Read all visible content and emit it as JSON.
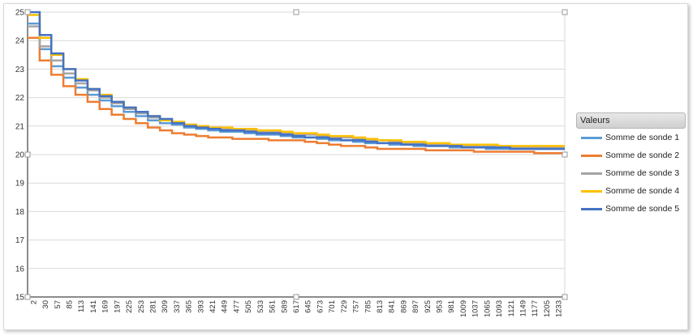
{
  "chart_data": {
    "type": "line",
    "ylim": [
      15,
      25
    ],
    "y_ticks": [
      "15",
      "16",
      "17",
      "18",
      "19",
      "20",
      "21",
      "22",
      "23",
      "24",
      "25"
    ],
    "x_tick_labels": [
      "2",
      "30",
      "57",
      "85",
      "113",
      "141",
      "169",
      "197",
      "225",
      "253",
      "281",
      "309",
      "337",
      "365",
      "393",
      "421",
      "449",
      "477",
      "505",
      "533",
      "561",
      "589",
      "617",
      "645",
      "673",
      "701",
      "729",
      "757",
      "785",
      "813",
      "841",
      "869",
      "897",
      "925",
      "953",
      "981",
      "1009",
      "1037",
      "1065",
      "1093",
      "1121",
      "1149",
      "1177",
      "1205",
      "1233"
    ],
    "x_range": [
      2,
      1248
    ],
    "grid": "horizontal",
    "legend_position": "right",
    "legend_title": "Valeurs",
    "x": [
      2,
      30,
      57,
      85,
      113,
      141,
      169,
      197,
      225,
      253,
      281,
      309,
      337,
      365,
      393,
      421,
      449,
      477,
      505,
      533,
      561,
      589,
      617,
      645,
      673,
      701,
      729,
      757,
      785,
      813,
      841,
      869,
      897,
      925,
      953,
      981,
      1009,
      1037,
      1065,
      1093,
      1121,
      1149,
      1177,
      1205,
      1233,
      1248
    ],
    "series": [
      {
        "name": "Somme de sonde 1",
        "color": "#5b9bd5",
        "values": [
          24.6,
          23.7,
          23.1,
          22.7,
          22.35,
          22.1,
          21.9,
          21.7,
          21.5,
          21.35,
          21.2,
          21.1,
          21.05,
          20.95,
          20.9,
          20.85,
          20.8,
          20.8,
          20.75,
          20.7,
          20.7,
          20.65,
          20.6,
          20.6,
          20.55,
          20.5,
          20.5,
          20.45,
          20.4,
          20.4,
          20.35,
          20.35,
          20.3,
          20.3,
          20.3,
          20.25,
          20.25,
          20.25,
          20.2,
          20.2,
          20.2,
          20.2,
          20.2,
          20.2,
          20.2,
          20.2
        ]
      },
      {
        "name": "Somme de sonde 2",
        "color": "#ed7d31",
        "values": [
          24.1,
          23.3,
          22.8,
          22.4,
          22.1,
          21.85,
          21.6,
          21.4,
          21.25,
          21.1,
          20.95,
          20.85,
          20.75,
          20.7,
          20.65,
          20.6,
          20.6,
          20.55,
          20.55,
          20.55,
          20.5,
          20.5,
          20.5,
          20.45,
          20.4,
          20.35,
          20.3,
          20.3,
          20.25,
          20.2,
          20.2,
          20.2,
          20.2,
          20.15,
          20.15,
          20.15,
          20.15,
          20.1,
          20.1,
          20.1,
          20.1,
          20.1,
          20.05,
          20.05,
          20.05,
          20.05
        ]
      },
      {
        "name": "Somme de sonde 3",
        "color": "#a5a5a5",
        "values": [
          24.5,
          23.8,
          23.3,
          22.85,
          22.5,
          22.25,
          22.0,
          21.8,
          21.6,
          21.45,
          21.3,
          21.2,
          21.1,
          21.05,
          21.0,
          20.95,
          20.9,
          20.85,
          20.85,
          20.8,
          20.8,
          20.75,
          20.7,
          20.7,
          20.65,
          20.6,
          20.6,
          20.55,
          20.5,
          20.5,
          20.45,
          20.4,
          20.4,
          20.35,
          20.35,
          20.35,
          20.3,
          20.3,
          20.3,
          20.3,
          20.25,
          20.25,
          20.25,
          20.25,
          20.25,
          20.25
        ]
      },
      {
        "name": "Somme de sonde 4",
        "color": "#ffc000",
        "values": [
          24.9,
          24.1,
          23.5,
          23.0,
          22.65,
          22.3,
          22.1,
          21.85,
          21.65,
          21.5,
          21.35,
          21.2,
          21.15,
          21.05,
          21.0,
          20.95,
          20.95,
          20.9,
          20.9,
          20.85,
          20.85,
          20.8,
          20.75,
          20.75,
          20.7,
          20.65,
          20.65,
          20.6,
          20.55,
          20.5,
          20.5,
          20.45,
          20.45,
          20.4,
          20.4,
          20.35,
          20.35,
          20.35,
          20.35,
          20.3,
          20.3,
          20.3,
          20.3,
          20.3,
          20.3,
          20.3
        ]
      },
      {
        "name": "Somme de sonde 5",
        "color": "#4472c4",
        "values": [
          25.0,
          24.2,
          23.55,
          23.0,
          22.6,
          22.3,
          22.05,
          21.85,
          21.65,
          21.5,
          21.35,
          21.25,
          21.1,
          21.0,
          20.95,
          20.9,
          20.85,
          20.85,
          20.8,
          20.75,
          20.75,
          20.7,
          20.65,
          20.6,
          20.6,
          20.55,
          20.5,
          20.5,
          20.45,
          20.4,
          20.4,
          20.35,
          20.35,
          20.3,
          20.3,
          20.3,
          20.25,
          20.25,
          20.25,
          20.25,
          20.2,
          20.2,
          20.2,
          20.2,
          20.2,
          20.2
        ]
      }
    ]
  }
}
